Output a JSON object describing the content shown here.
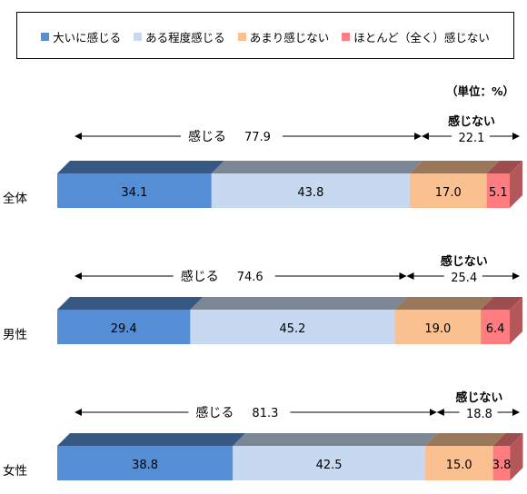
{
  "legend": {
    "items": [
      {
        "label": "大いに感じる",
        "color": "#558ed5"
      },
      {
        "label": "ある程度感じる",
        "color": "#c6d9f1"
      },
      {
        "label": "あまり感じない",
        "color": "#fac090"
      },
      {
        "label": "ほとんど（全く）感じない",
        "color": "#ff7c80"
      }
    ]
  },
  "unit_label": "（単位：%）",
  "chart_data": {
    "type": "bar",
    "orientation": "horizontal",
    "stacked": true,
    "categories": [
      "全体",
      "男性",
      "女性"
    ],
    "series": [
      {
        "name": "大いに感じる",
        "values": [
          34.1,
          29.4,
          38.8
        ],
        "color": "#558ed5"
      },
      {
        "name": "ある程度感じる",
        "values": [
          43.8,
          45.2,
          42.5
        ],
        "color": "#c6d9f1"
      },
      {
        "name": "あまり感じない",
        "values": [
          17.0,
          19.0,
          15.0
        ],
        "color": "#fac090"
      },
      {
        "name": "ほとんど（全く）感じない",
        "values": [
          5.1,
          6.4,
          3.8
        ],
        "color": "#ff7c80"
      }
    ],
    "annotations": [
      {
        "feel_label": "感じる",
        "feel_value": "77.9",
        "notfeel_label": "感じない",
        "notfeel_value": "22.1"
      },
      {
        "feel_label": "感じる",
        "feel_value": "74.6",
        "notfeel_label": "感じない",
        "notfeel_value": "25.4"
      },
      {
        "feel_label": "感じる",
        "feel_value": "81.3",
        "notfeel_label": "感じない",
        "notfeel_value": "18.8"
      }
    ],
    "xlim": [
      0,
      100
    ],
    "grid": false,
    "legend_position": "top"
  }
}
